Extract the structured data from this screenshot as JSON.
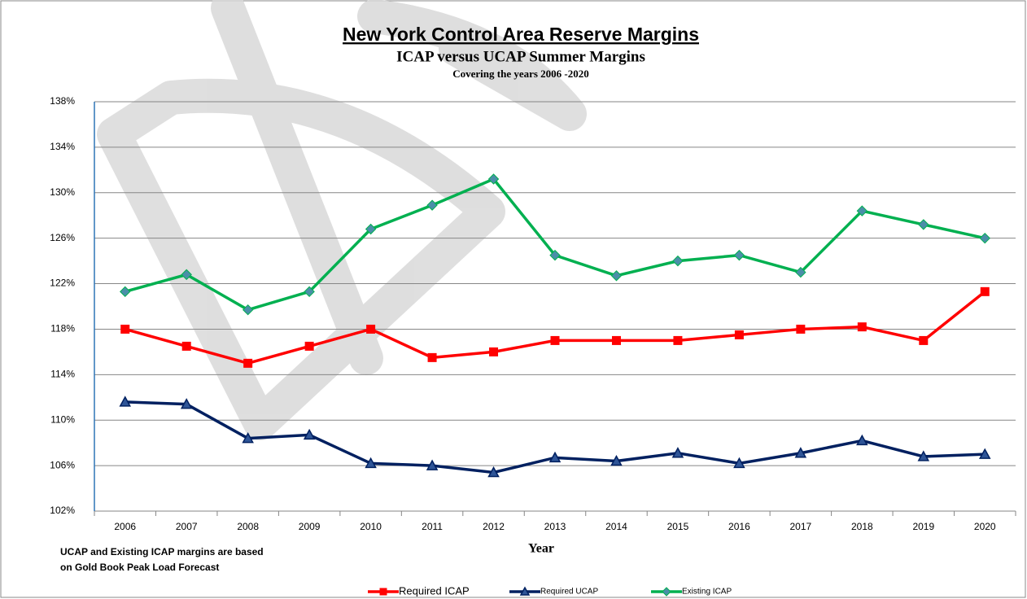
{
  "chart_data": {
    "type": "line",
    "title": "New York Control Area Reserve Margins",
    "subtitle": "ICAP versus UCAP  Summer Margins",
    "subtitle2": "Covering the years 2006     -2020",
    "x_label": "Year",
    "note": [
      "UCAP and Existing ICAP margins are based",
      "on Gold Book Peak Load Forecast"
    ],
    "categories": [
      "2006",
      "2007",
      "2008",
      "2009",
      "2010",
      "2011",
      "2012",
      "2013",
      "2014",
      "2015",
      "2016",
      "2017",
      "2018",
      "2019",
      "2020"
    ],
    "ylim": [
      102,
      138
    ],
    "yticks": [
      {
        "value": 102,
        "label": "102%"
      },
      {
        "value": 106,
        "label": "106%"
      },
      {
        "value": 110,
        "label": "110%"
      },
      {
        "value": 114,
        "label": "114%"
      },
      {
        "value": 118,
        "label": "118%"
      },
      {
        "value": 122,
        "label": "122%"
      },
      {
        "value": 126,
        "label": "126%"
      },
      {
        "value": 130,
        "label": "130%"
      },
      {
        "value": 134,
        "label": "134%"
      },
      {
        "value": 138,
        "label": "138%"
      }
    ],
    "grid": true,
    "series": [
      {
        "name": "Required ICAP",
        "color": "#ff0000",
        "marker": "square",
        "marker_color": "#ff0000",
        "values": [
          118.0,
          116.5,
          115.0,
          116.5,
          118.0,
          115.5,
          116.0,
          117.0,
          117.0,
          117.0,
          117.5,
          118.0,
          118.2,
          117.0,
          121.3
        ]
      },
      {
        "name": "Required UCAP",
        "color": "#002060",
        "marker": "triangle",
        "marker_color": "#2f5597",
        "values": [
          111.6,
          111.4,
          108.4,
          108.7,
          106.2,
          106.0,
          105.4,
          106.7,
          106.4,
          107.1,
          106.2,
          107.1,
          108.2,
          106.8,
          107.0
        ]
      },
      {
        "name": "Existing ICAP",
        "color": "#00b050",
        "marker": "diamond",
        "marker_color": "#4a8fa8",
        "values": [
          121.3,
          122.8,
          119.7,
          121.3,
          126.8,
          128.9,
          131.2,
          124.5,
          122.7,
          124.0,
          124.5,
          123.0,
          128.4,
          127.2,
          126.0
        ]
      }
    ]
  }
}
